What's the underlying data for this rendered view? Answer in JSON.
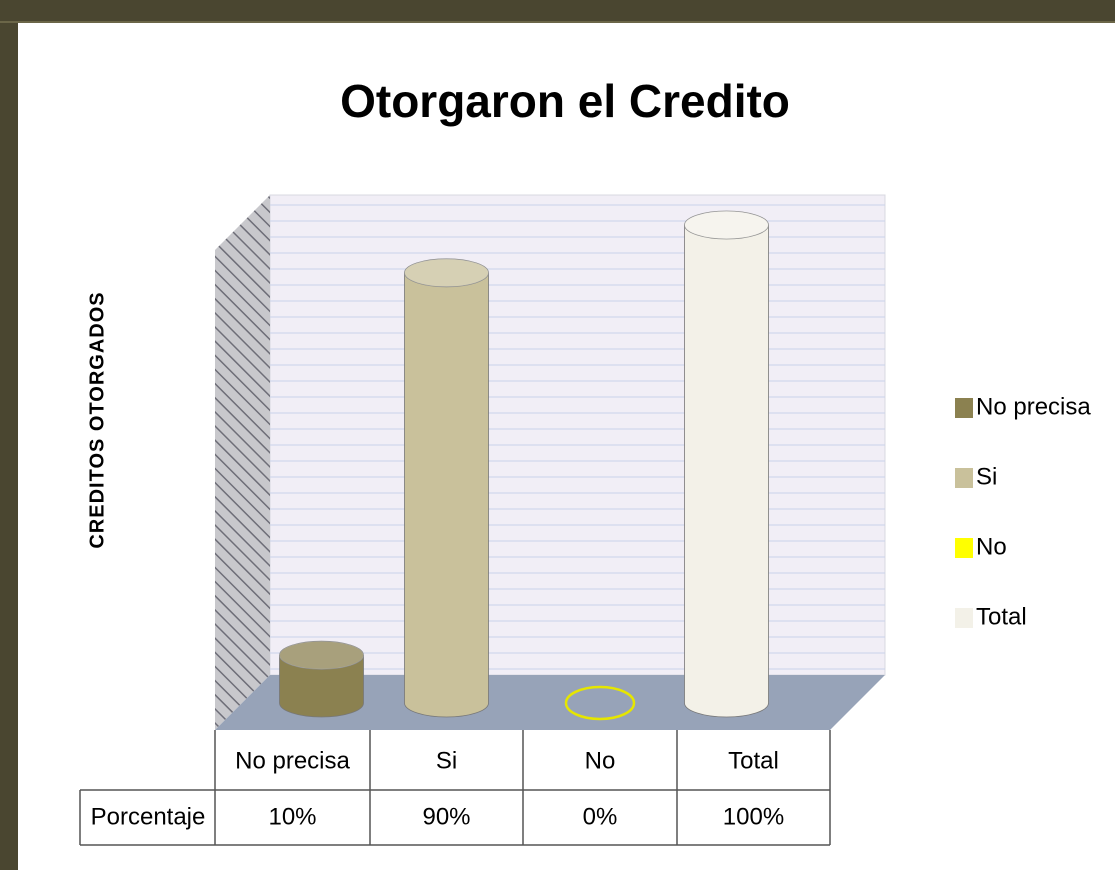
{
  "chart_data": {
    "type": "cylinder-bar",
    "title": "Otorgaron el Credito",
    "y_label": "CREDITOS    OTORGADOS",
    "categories": [
      "No precisa",
      "Si",
      "No",
      "Total"
    ],
    "colors": [
      "#8b8150",
      "#c9c19b",
      "#ffff00",
      "#f3f1e8"
    ],
    "row_label": "Porcentaje",
    "values": [
      10,
      90,
      0,
      100
    ],
    "value_labels": [
      "10%",
      "90%",
      "0%",
      "100%"
    ],
    "legend": "right"
  }
}
